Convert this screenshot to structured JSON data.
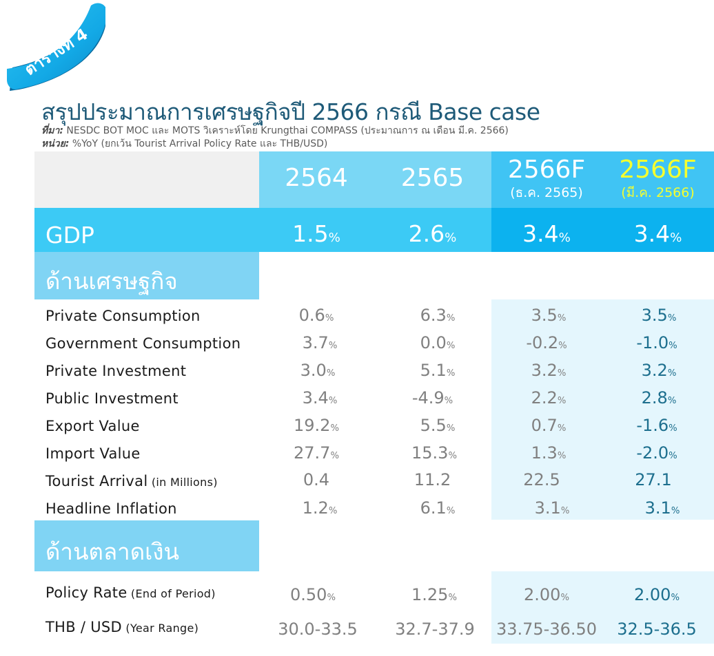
{
  "ribbon": {
    "label": "ตารางที่ 4"
  },
  "title": "สรุปประมาณการเศรษฐกิจปี 2566 กรณี Base case",
  "source": {
    "label": "ที่มา:",
    "text": " NESDC BOT MOC และ MOTS วิเคราะห์โดย Krungthai COMPASS (ประมาณการ ณ เดือน มี.ค. 2566)"
  },
  "unit": {
    "label": "หน่วย:",
    "text": " %YoY (ยกเว้น Tourist Arrival Policy Rate และ THB/USD)"
  },
  "header": {
    "col1": "2564",
    "col2": "2565",
    "col3": "2566F",
    "col3_sub": "(ธ.ค. 2565)",
    "col4": "2566F",
    "col4_sub": "(มี.ค. 2566)"
  },
  "gdp": {
    "label": "GDP",
    "v1": "1.5",
    "v2": "2.6",
    "v3": "3.4",
    "v4": "3.4",
    "unit": "%"
  },
  "section_economy": "ด้านเศรษฐกิจ",
  "economy_rows": [
    {
      "label": "Private Consumption",
      "note": "",
      "v1": "0.6",
      "v2": "6.3",
      "v3": "3.5",
      "v4": "3.5",
      "unit": "%"
    },
    {
      "label": "Government Consumption",
      "note": "",
      "v1": "3.7",
      "v2": "0.0",
      "v3": "-0.2",
      "v4": "-1.0",
      "unit": "%"
    },
    {
      "label": "Private Investment",
      "note": "",
      "v1": "3.0",
      "v2": "5.1",
      "v3": "3.2",
      "v4": "3.2",
      "unit": "%"
    },
    {
      "label": "Public Investment",
      "note": "",
      "v1": "3.4",
      "v2": "-4.9",
      "v3": "2.2",
      "v4": "2.8",
      "unit": "%"
    },
    {
      "label": "Export Value",
      "note": "",
      "v1": "19.2",
      "v2": "5.5",
      "v3": "0.7",
      "v4": "-1.6",
      "unit": "%"
    },
    {
      "label": "Import Value",
      "note": "",
      "v1": "27.7",
      "v2": "15.3",
      "v3": "1.3",
      "v4": "-2.0",
      "unit": "%"
    },
    {
      "label": "Tourist Arrival",
      "note": " (in Millions)",
      "v1": "0.4",
      "v2": "11.2",
      "v3": "22.5",
      "v4": "27.1",
      "unit": ""
    },
    {
      "label": "Headline Inflation",
      "note": "",
      "v1": "1.2",
      "v2": "6.1",
      "v3": "3.1",
      "v4": "3.1",
      "unit": "%"
    }
  ],
  "section_money": "ด้านตลาดเงิน",
  "money_rows": [
    {
      "label": "Policy Rate",
      "note": " (End of Period)",
      "v1": "0.50",
      "v2": "1.25",
      "v3": "2.00",
      "v4": "2.00",
      "unit": "%"
    },
    {
      "label": "THB / USD",
      "note": " (Year Range)",
      "v1": "30.0-33.5",
      "v2": "32.7-37.9",
      "v3": "33.75-36.50",
      "v4": "32.5-36.5",
      "unit": ""
    }
  ],
  "colors": {
    "header_grey": "#f0f0f0",
    "header_light_blue": "#7ad7f5",
    "header_mid_blue": "#40c4f4",
    "gdp_blue": "#3ccaf5",
    "gdp_dark_blue": "#0cb2ef",
    "section_blue": "#80d4f4",
    "forecast_bg": "#e4f6fd",
    "title": "#1e5a78"
  }
}
